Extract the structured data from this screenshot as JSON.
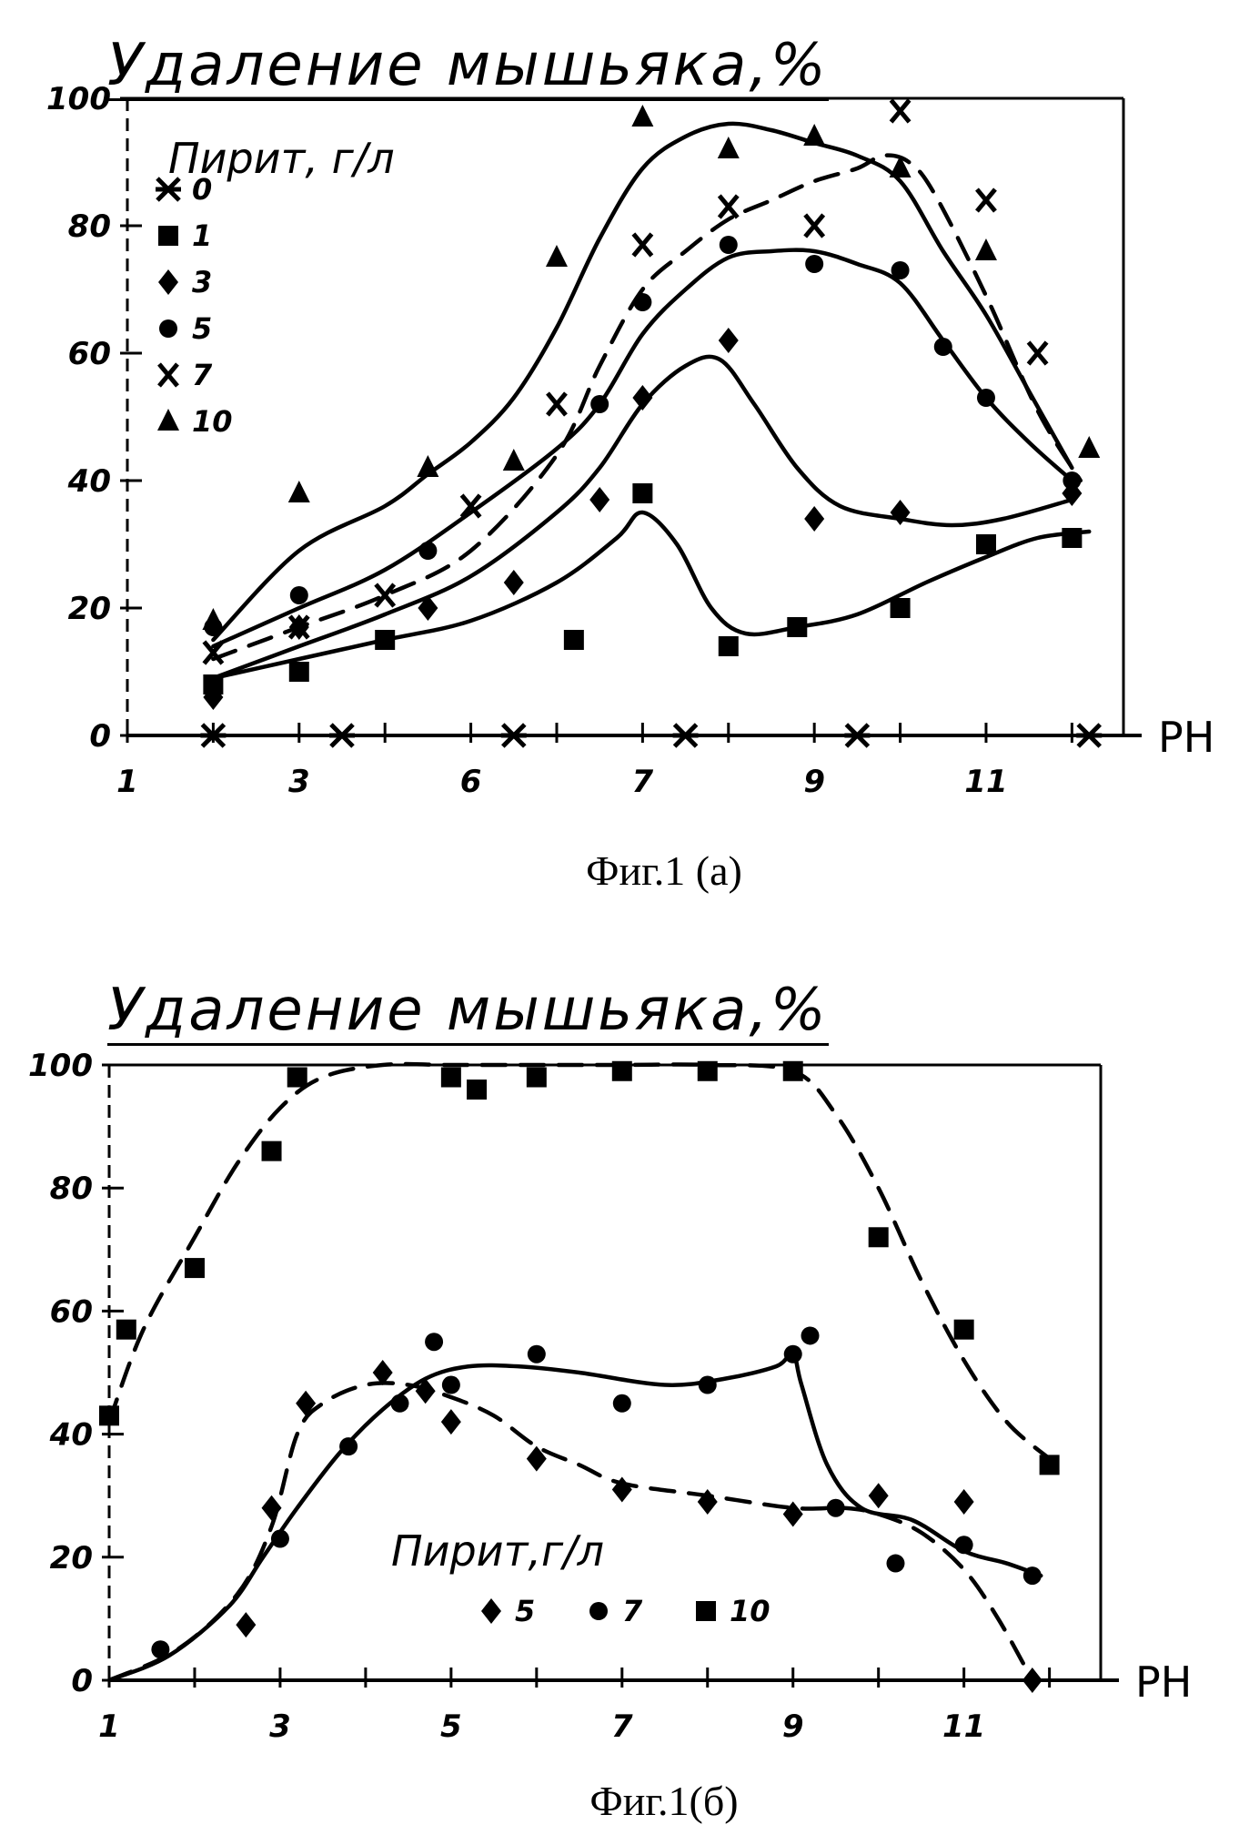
{
  "figures": [
    {
      "caption": "Фиг.1 (а)"
    },
    {
      "caption": "Фиг.1(б)"
    }
  ],
  "chart_data": [
    {
      "type": "line",
      "title": "Удаление мышьяка,%",
      "xlabel": "PH",
      "ylabel": "",
      "xlim": [
        1,
        12.6
      ],
      "ylim": [
        0,
        100
      ],
      "xticks": [
        1,
        2,
        3,
        4,
        5,
        6,
        7,
        8,
        9,
        10,
        11,
        12
      ],
      "xtick_labels": [
        "1",
        "",
        "3",
        "",
        "6",
        "",
        "7",
        "",
        "9",
        "",
        "11",
        ""
      ],
      "yticks": [
        0,
        20,
        40,
        60,
        80,
        100
      ],
      "ytick_labels": [
        "0",
        "20",
        "40",
        "60",
        "80",
        "100"
      ],
      "legend_title": "Пирит, г/л",
      "legend_position": "top-left",
      "series": [
        {
          "name": "0",
          "marker": "asterisk",
          "dash": false,
          "points": [
            [
              2,
              0
            ],
            [
              3.5,
              0
            ],
            [
              5.5,
              0
            ],
            [
              7.5,
              0
            ],
            [
              9.5,
              0
            ],
            [
              12.2,
              0
            ]
          ],
          "curve": []
        },
        {
          "name": "1",
          "marker": "square",
          "dash": false,
          "points": [
            [
              2,
              8
            ],
            [
              3,
              10
            ],
            [
              4,
              15
            ],
            [
              6.2,
              15
            ],
            [
              7,
              38
            ],
            [
              8,
              14
            ],
            [
              8.8,
              17
            ],
            [
              10,
              20
            ],
            [
              11,
              30
            ],
            [
              12,
              31
            ]
          ],
          "curve": [
            [
              2,
              9
            ],
            [
              3,
              12
            ],
            [
              4,
              15
            ],
            [
              5,
              18
            ],
            [
              6,
              24
            ],
            [
              6.7,
              31
            ],
            [
              7,
              35
            ],
            [
              7.4,
              30
            ],
            [
              7.8,
              20
            ],
            [
              8.2,
              16
            ],
            [
              8.8,
              17
            ],
            [
              9.5,
              19
            ],
            [
              10.3,
              24
            ],
            [
              11,
              28
            ],
            [
              11.6,
              31
            ],
            [
              12.2,
              32
            ]
          ]
        },
        {
          "name": "3",
          "marker": "diamond",
          "dash": false,
          "points": [
            [
              2,
              6
            ],
            [
              3,
              17
            ],
            [
              4.5,
              20
            ],
            [
              5.5,
              24
            ],
            [
              6.5,
              37
            ],
            [
              7,
              53
            ],
            [
              8,
              62
            ],
            [
              9,
              34
            ],
            [
              10,
              35
            ],
            [
              12,
              38
            ]
          ],
          "curve": [
            [
              2,
              9
            ],
            [
              3,
              14
            ],
            [
              4,
              19
            ],
            [
              5,
              25
            ],
            [
              6,
              35
            ],
            [
              6.5,
              42
            ],
            [
              7,
              52
            ],
            [
              7.5,
              58
            ],
            [
              7.9,
              59
            ],
            [
              8.3,
              52
            ],
            [
              8.8,
              42
            ],
            [
              9.3,
              36
            ],
            [
              10,
              34
            ],
            [
              10.6,
              33
            ],
            [
              11.2,
              34
            ],
            [
              12,
              37
            ]
          ]
        },
        {
          "name": "5",
          "marker": "dot",
          "dash": false,
          "points": [
            [
              2,
              17
            ],
            [
              3,
              22
            ],
            [
              4.5,
              29
            ],
            [
              6.5,
              52
            ],
            [
              7,
              68
            ],
            [
              8,
              77
            ],
            [
              9,
              74
            ],
            [
              10,
              73
            ],
            [
              10.5,
              61
            ],
            [
              11,
              53
            ],
            [
              12,
              40
            ]
          ],
          "curve": [
            [
              2,
              14
            ],
            [
              3,
              20
            ],
            [
              4,
              26
            ],
            [
              5,
              35
            ],
            [
              6,
              45
            ],
            [
              6.5,
              52
            ],
            [
              7,
              63
            ],
            [
              7.5,
              70
            ],
            [
              8,
              75
            ],
            [
              8.5,
              76
            ],
            [
              9,
              76
            ],
            [
              9.5,
              74
            ],
            [
              10,
              71
            ],
            [
              10.5,
              62
            ],
            [
              11,
              53
            ],
            [
              11.5,
              46
            ],
            [
              12,
              40
            ]
          ]
        },
        {
          "name": "7",
          "marker": "x",
          "dash": true,
          "points": [
            [
              2,
              13
            ],
            [
              3,
              17
            ],
            [
              4,
              22
            ],
            [
              5,
              36
            ],
            [
              6,
              52
            ],
            [
              7,
              77
            ],
            [
              8,
              83
            ],
            [
              9,
              80
            ],
            [
              10,
              98
            ],
            [
              11,
              84
            ],
            [
              11.6,
              60
            ]
          ],
          "curve": [
            [
              2,
              12
            ],
            [
              3,
              17
            ],
            [
              4,
              22
            ],
            [
              5,
              29
            ],
            [
              6,
              44
            ],
            [
              6.5,
              58
            ],
            [
              7,
              70
            ],
            [
              7.5,
              76
            ],
            [
              8,
              81
            ],
            [
              8.5,
              84
            ],
            [
              9,
              87
            ],
            [
              9.5,
              89
            ],
            [
              9.8,
              91
            ],
            [
              10.1,
              90
            ],
            [
              10.4,
              85
            ],
            [
              11,
              69
            ],
            [
              11.6,
              51
            ],
            [
              12.1,
              40
            ]
          ]
        },
        {
          "name": "10",
          "marker": "triangle",
          "dash": false,
          "points": [
            [
              2,
              18
            ],
            [
              3,
              38
            ],
            [
              4.5,
              42
            ],
            [
              5.5,
              43
            ],
            [
              6,
              75
            ],
            [
              7,
              97
            ],
            [
              8,
              92
            ],
            [
              9,
              94
            ],
            [
              10,
              89
            ],
            [
              11,
              76
            ],
            [
              12.2,
              45
            ]
          ],
          "curve": [
            [
              2,
              15
            ],
            [
              3,
              29
            ],
            [
              4,
              36
            ],
            [
              4.5,
              41
            ],
            [
              5,
              46
            ],
            [
              5.5,
              53
            ],
            [
              6,
              64
            ],
            [
              6.5,
              78
            ],
            [
              7,
              89
            ],
            [
              7.5,
              94
            ],
            [
              8,
              96
            ],
            [
              8.5,
              95
            ],
            [
              9,
              93
            ],
            [
              9.5,
              91
            ],
            [
              10,
              87
            ],
            [
              10.5,
              76
            ],
            [
              11,
              66
            ],
            [
              11.5,
              54
            ],
            [
              12,
              42
            ]
          ]
        }
      ]
    },
    {
      "type": "line",
      "title": "Удаление мышьяка,%",
      "xlabel": "PH",
      "ylabel": "",
      "xlim": [
        1,
        12.6
      ],
      "ylim": [
        0,
        100
      ],
      "xticks": [
        1,
        2,
        3,
        4,
        5,
        6,
        7,
        8,
        9,
        10,
        11,
        12
      ],
      "xtick_labels": [
        "1",
        "",
        "3",
        "",
        "5",
        "",
        "7",
        "",
        "9",
        "",
        "11",
        ""
      ],
      "yticks": [
        0,
        20,
        40,
        60,
        80,
        100
      ],
      "ytick_labels": [
        "0",
        "20",
        "40",
        "60",
        "80",
        "100"
      ],
      "legend_title": "Пирит,г/л",
      "legend_position": "bottom-center",
      "series": [
        {
          "name": "5",
          "marker": "diamond",
          "dash": true,
          "points": [
            [
              2.6,
              9
            ],
            [
              2.9,
              28
            ],
            [
              3.3,
              45
            ],
            [
              4.2,
              50
            ],
            [
              4.7,
              47
            ],
            [
              5,
              42
            ],
            [
              6,
              36
            ],
            [
              7,
              31
            ],
            [
              8,
              29
            ],
            [
              9,
              27
            ],
            [
              10,
              30
            ],
            [
              11,
              29
            ],
            [
              11.8,
              0
            ]
          ],
          "curve": [
            [
              1,
              0
            ],
            [
              1.8,
              5
            ],
            [
              2.5,
              14
            ],
            [
              2.9,
              25
            ],
            [
              3.2,
              40
            ],
            [
              3.5,
              45
            ],
            [
              4,
              48
            ],
            [
              4.5,
              48
            ],
            [
              5,
              46
            ],
            [
              5.5,
              43
            ],
            [
              6,
              38
            ],
            [
              6.5,
              35
            ],
            [
              7,
              32
            ],
            [
              8,
              30
            ],
            [
              9,
              28
            ],
            [
              9.6,
              28
            ],
            [
              10,
              27
            ],
            [
              10.5,
              24
            ],
            [
              11,
              18
            ],
            [
              11.4,
              10
            ],
            [
              11.8,
              0
            ]
          ]
        },
        {
          "name": "7",
          "marker": "dot",
          "dash": false,
          "points": [
            [
              1.6,
              5
            ],
            [
              3,
              23
            ],
            [
              3.8,
              38
            ],
            [
              4.4,
              45
            ],
            [
              4.8,
              55
            ],
            [
              5,
              48
            ],
            [
              6,
              53
            ],
            [
              7,
              45
            ],
            [
              8,
              48
            ],
            [
              9,
              53
            ],
            [
              9.2,
              56
            ],
            [
              9.5,
              28
            ],
            [
              10.2,
              19
            ],
            [
              11,
              22
            ],
            [
              11.8,
              17
            ]
          ],
          "curve": [
            [
              1,
              0
            ],
            [
              1.7,
              4
            ],
            [
              2.4,
              12
            ],
            [
              2.8,
              20
            ],
            [
              3.2,
              28
            ],
            [
              3.7,
              37
            ],
            [
              4.2,
              44
            ],
            [
              4.7,
              49
            ],
            [
              5.2,
              51
            ],
            [
              5.8,
              51
            ],
            [
              6.5,
              50
            ],
            [
              7.5,
              48
            ],
            [
              8.2,
              49
            ],
            [
              8.8,
              51
            ],
            [
              9,
              53
            ],
            [
              9.1,
              48
            ],
            [
              9.4,
              35
            ],
            [
              9.8,
              28
            ],
            [
              10.4,
              26
            ],
            [
              11,
              21
            ],
            [
              11.5,
              19
            ],
            [
              11.9,
              17
            ]
          ]
        },
        {
          "name": "10",
          "marker": "square",
          "dash": true,
          "points": [
            [
              1,
              43
            ],
            [
              1.2,
              57
            ],
            [
              2,
              67
            ],
            [
              2.9,
              86
            ],
            [
              3.2,
              98
            ],
            [
              5,
              98
            ],
            [
              5.3,
              96
            ],
            [
              6,
              98
            ],
            [
              7,
              99
            ],
            [
              8,
              99
            ],
            [
              9,
              99
            ],
            [
              10,
              72
            ],
            [
              11,
              57
            ],
            [
              12,
              35
            ]
          ],
          "curve": [
            [
              1,
              42
            ],
            [
              1.4,
              57
            ],
            [
              2,
              72
            ],
            [
              2.5,
              84
            ],
            [
              3,
              93
            ],
            [
              3.5,
              98
            ],
            [
              4.2,
              100
            ],
            [
              5,
              100
            ],
            [
              6,
              100
            ],
            [
              7,
              100
            ],
            [
              8,
              100
            ],
            [
              9,
              99
            ],
            [
              9.5,
              92
            ],
            [
              10,
              80
            ],
            [
              10.5,
              65
            ],
            [
              11,
              52
            ],
            [
              11.5,
              42
            ],
            [
              12,
              36
            ]
          ]
        }
      ]
    }
  ]
}
